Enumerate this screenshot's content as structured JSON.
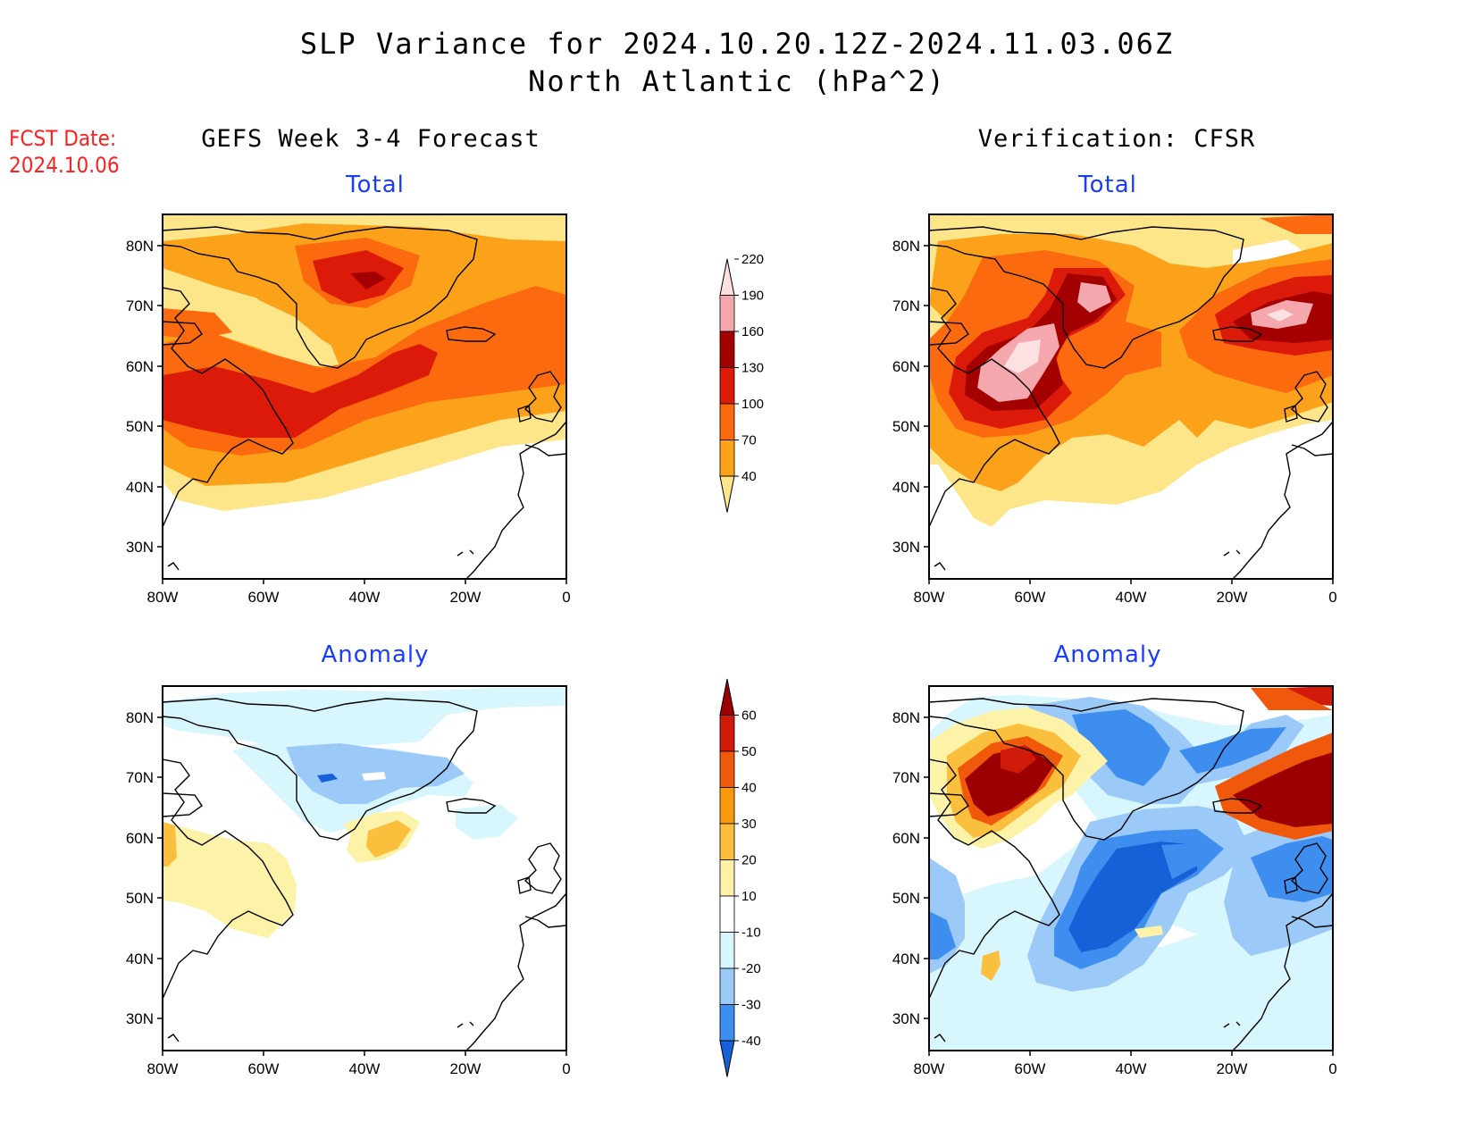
{
  "header": {
    "title_line1": "SLP Variance for 2024.10.20.12Z-2024.11.03.06Z",
    "title_line2": "North Atlantic (hPa^2)"
  },
  "fcst_date": {
    "label": "FCST Date:",
    "value": "2024.10.06"
  },
  "columns": {
    "left_title": "GEFS Week 3-4 Forecast",
    "right_title": "Verification: CFSR"
  },
  "panels": {
    "top_left": {
      "subtitle": "Total"
    },
    "top_right": {
      "subtitle": "Total"
    },
    "bottom_left": {
      "subtitle": "Anomaly"
    },
    "bottom_right": {
      "subtitle": "Anomaly"
    }
  },
  "map_axes": {
    "lat_labels": [
      "80N",
      "70N",
      "60N",
      "50N",
      "40N",
      "30N"
    ],
    "lon_labels": [
      "80W",
      "60W",
      "40W",
      "20W",
      "0"
    ]
  },
  "total_colorbar": {
    "labels": [
      "40",
      "70",
      "100",
      "130",
      "160",
      "190",
      "220"
    ],
    "colors": [
      "#fde68a",
      "#fca21a",
      "#fc6a10",
      "#dc1a0a",
      "#a40000",
      "#f4a7ad",
      "#fde0e0"
    ]
  },
  "anomaly_colorbar": {
    "labels": [
      "-40",
      "-30",
      "-20",
      "-10",
      "10",
      "20",
      "30",
      "40",
      "50",
      "60"
    ],
    "colors": [
      "#1660d8",
      "#3e8ef0",
      "#9ccaf8",
      "#d8f6fd",
      "#ffffff",
      "#fdf3a8",
      "#fbbf3e",
      "#f99a0e",
      "#f0580c",
      "#d01a0a",
      "#9c0000"
    ]
  },
  "colors": {
    "fcst_text": "#ff2020",
    "subtitle_text": "#1a3cff"
  }
}
